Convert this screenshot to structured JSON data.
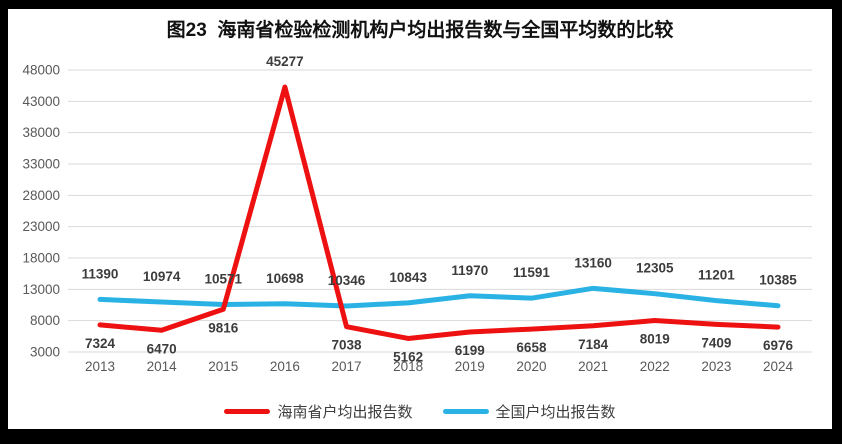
{
  "frame": {
    "outer_background": "#000000",
    "panel_background": "#ffffff"
  },
  "title": "图23  海南省检验检测机构户均出报告数与全国平均数的比较",
  "chart_data": {
    "type": "line",
    "title": "图23  海南省检验检测机构户均出报告数与全国平均数的比较",
    "categories": [
      "2013",
      "2014",
      "2015",
      "2016",
      "2017",
      "2018",
      "2019",
      "2020",
      "2021",
      "2022",
      "2023",
      "2024"
    ],
    "series": [
      {
        "id": "hainan",
        "name": "海南省户均出报告数",
        "color": "#ee1111",
        "values": [
          7324,
          6470,
          9816,
          45277,
          7038,
          5162,
          6199,
          6658,
          7184,
          8019,
          7409,
          6976
        ],
        "label_position": "below",
        "label_position_overrides": {
          "3": "above"
        }
      },
      {
        "id": "national",
        "name": "全国户均出报告数",
        "color": "#2ab2e4",
        "values": [
          11390,
          10974,
          10571,
          10698,
          10346,
          10843,
          11970,
          11591,
          13160,
          12305,
          11201,
          10385
        ],
        "label_position": "above",
        "label_position_overrides": {}
      }
    ],
    "ylim": [
      3000,
      48000
    ],
    "ytick_step": 5000,
    "yticks": [
      3000,
      8000,
      13000,
      18000,
      23000,
      28000,
      33000,
      38000,
      43000,
      48000
    ],
    "grid": "horizontal",
    "legend_position": "bottom",
    "gridline_color": "#d9d9d9",
    "tick_label_color": "#595959",
    "data_label_color": "#3c3c3c"
  }
}
